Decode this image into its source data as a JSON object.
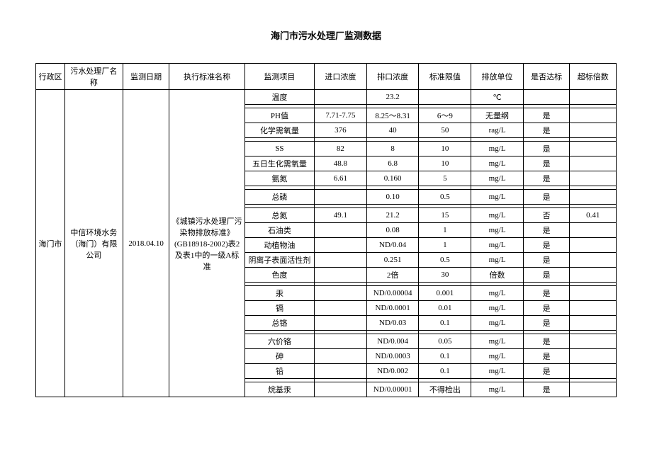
{
  "title": "海门市污水处理厂监测数据",
  "headers": {
    "region": "行政区",
    "plant": "污水处理厂名称",
    "date": "监测日期",
    "standard": "执行标准名称",
    "item": "监测项目",
    "inlet": "进口浓度",
    "outlet": "排口浓度",
    "limit": "标准限值",
    "unit": "排放单位",
    "pass": "是否达标",
    "exceed": "超标倍数"
  },
  "group": {
    "region": "海门市",
    "plant": "中信环境水务（海门）有限公司",
    "date": "2018.04.10",
    "standard": "《城镇污水处理厂污染物排放标准》(GB18918-2002)表2及表1中的一级A标准"
  },
  "rows": [
    {
      "item": "温度",
      "inlet": "",
      "outlet": "23.2",
      "limit": "",
      "unit": "℃",
      "pass": "",
      "exceed": ""
    },
    {
      "item": "PH值",
      "inlet": "7.71-7.75",
      "outlet": "8.25～8.31",
      "limit": "6～9",
      "unit": "无量纲",
      "pass": "是",
      "exceed": ""
    },
    {
      "item": "化学需氧量",
      "inlet": "376",
      "outlet": "40",
      "limit": "50",
      "unit": "rag/L",
      "pass": "是",
      "exceed": ""
    },
    {
      "item": "SS",
      "inlet": "82",
      "outlet": "8",
      "limit": "10",
      "unit": "mg/L",
      "pass": "是",
      "exceed": ""
    },
    {
      "item": "五日生化需氧量",
      "inlet": "48.8",
      "outlet": "6.8",
      "limit": "10",
      "unit": "mg/L",
      "pass": "是",
      "exceed": ""
    },
    {
      "item": "氨氮",
      "inlet": "6.61",
      "outlet": "0.160",
      "limit": "5",
      "unit": "mg/L",
      "pass": "是",
      "exceed": ""
    },
    {
      "item": "总磷",
      "inlet": "",
      "outlet": "0.10",
      "limit": "0.5",
      "unit": "mg/L",
      "pass": "是",
      "exceed": ""
    },
    {
      "item": "总氮",
      "inlet": "49.1",
      "outlet": "21.2",
      "limit": "15",
      "unit": "mg/L",
      "pass": "否",
      "exceed": "0.41"
    },
    {
      "item": "石油类",
      "inlet": "",
      "outlet": "0.08",
      "limit": "1",
      "unit": "mg/L",
      "pass": "是",
      "exceed": ""
    },
    {
      "item": "动植物油",
      "inlet": "",
      "outlet": "ND/0.04",
      "limit": "1",
      "unit": "mg/L",
      "pass": "是",
      "exceed": ""
    },
    {
      "item": "阴离子表面活性剂",
      "inlet": "",
      "outlet": "0.251",
      "limit": "0.5",
      "unit": "mg/L",
      "pass": "是",
      "exceed": ""
    },
    {
      "item": "色度",
      "inlet": "",
      "outlet": "2倍",
      "limit": "30",
      "unit": "倍数",
      "pass": "是",
      "exceed": ""
    },
    {
      "item": "汞",
      "inlet": "",
      "outlet": "ND/0.00004",
      "limit": "0.001",
      "unit": "mg/L",
      "pass": "是",
      "exceed": ""
    },
    {
      "item": "镉",
      "inlet": "",
      "outlet": "ND/0.0001",
      "limit": "0.01",
      "unit": "mg/L",
      "pass": "是",
      "exceed": ""
    },
    {
      "item": "总铬",
      "inlet": "",
      "outlet": "ND/0.03",
      "limit": "0.1",
      "unit": "mg/L",
      "pass": "是",
      "exceed": ""
    },
    {
      "item": "六价铬",
      "inlet": "",
      "outlet": "ND/0.004",
      "limit": "0.05",
      "unit": "mg/L",
      "pass": "是",
      "exceed": ""
    },
    {
      "item": "砷",
      "inlet": "",
      "outlet": "ND/0.0003",
      "limit": "0.1",
      "unit": "mg/L",
      "pass": "是",
      "exceed": ""
    },
    {
      "item": "铅",
      "inlet": "",
      "outlet": "ND/0.002",
      "limit": "0.1",
      "unit": "mg/L",
      "pass": "是",
      "exceed": ""
    },
    {
      "item": "烷基汞",
      "inlet": "",
      "outlet": "ND/0.00001",
      "limit": "不得检出",
      "unit": "mg/L",
      "pass": "是",
      "exceed": ""
    }
  ]
}
